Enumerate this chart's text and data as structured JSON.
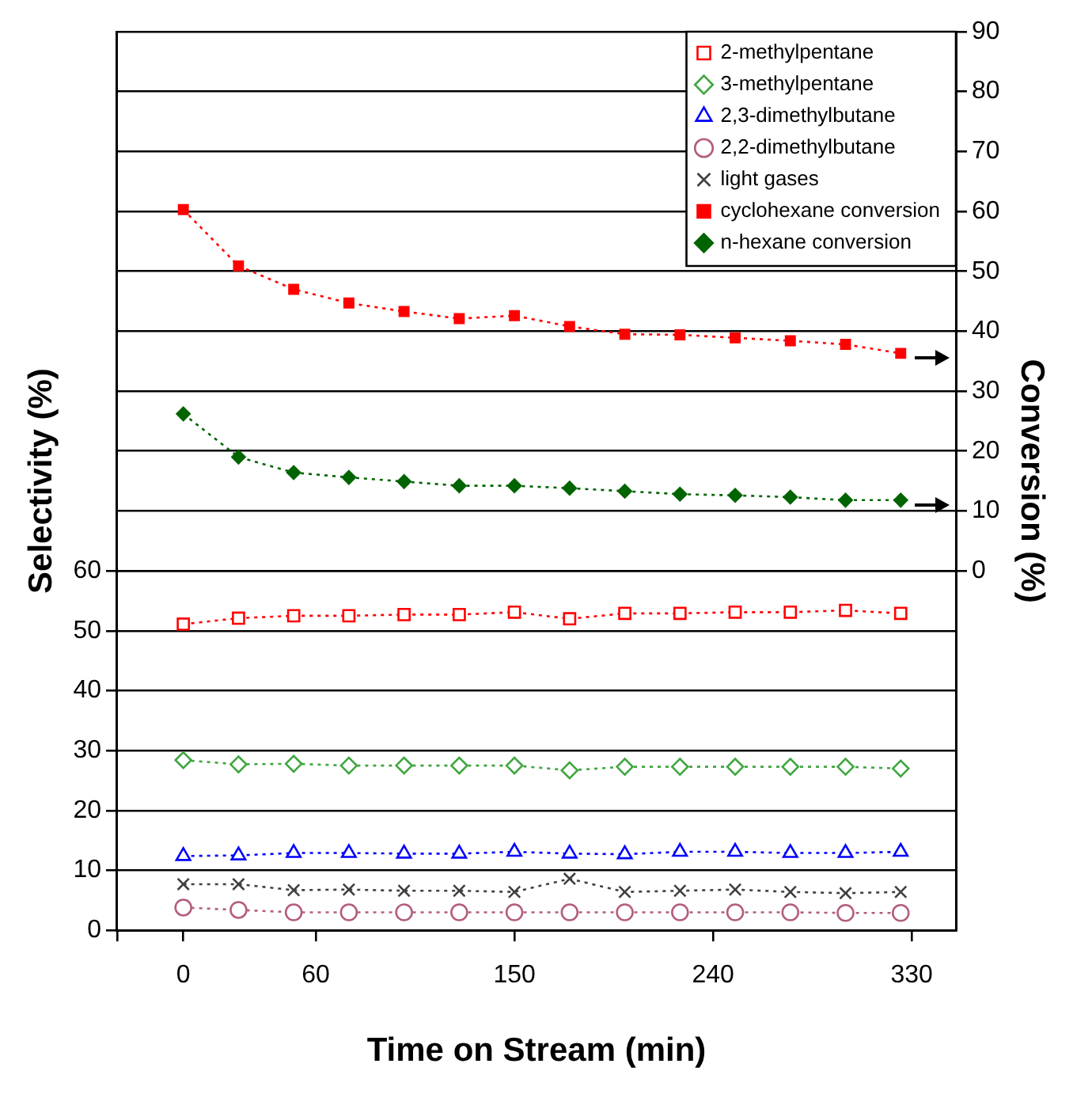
{
  "chart_data": {
    "type": "line",
    "xlabel": "Time on Stream (min)",
    "ylabel": "Selectivity (%)",
    "y2label": "Conversion (%)",
    "x": [
      0,
      25,
      50,
      75,
      100,
      125,
      150,
      175,
      200,
      225,
      250,
      275,
      300,
      325
    ],
    "xlim": [
      -30,
      350
    ],
    "xticks": [
      {
        "value": -30,
        "label": null
      },
      0,
      60,
      150,
      240,
      330
    ],
    "ylim": [
      0,
      150
    ],
    "yticks": [
      0,
      10,
      20,
      30,
      40,
      50,
      60
    ],
    "y2lim": [
      -60,
      90
    ],
    "y2ticks": [
      0,
      10,
      20,
      30,
      40,
      50,
      60,
      70,
      80,
      90
    ],
    "grid": "y",
    "legend": "top right",
    "line_style": "dotted",
    "series": [
      {
        "name": "2-methylpentane",
        "color": "#ff0000",
        "marker": "square",
        "values": [
          51.1,
          52.1,
          52.5,
          52.5,
          52.7,
          52.7,
          53.1,
          52.0,
          52.9,
          52.9,
          53.1,
          53.1,
          53.4,
          52.9
        ]
      },
      {
        "name": "3-methylpentane",
        "color": "#3fa63f",
        "marker": "diamond",
        "values": [
          28.4,
          27.7,
          27.8,
          27.5,
          27.5,
          27.5,
          27.5,
          26.7,
          27.3,
          27.3,
          27.3,
          27.3,
          27.3,
          27.0
        ]
      },
      {
        "name": "2,3-dimethylbutane",
        "color": "#0000ff",
        "marker": "triangle",
        "values": [
          12.4,
          12.5,
          12.9,
          12.9,
          12.8,
          12.8,
          13.1,
          12.8,
          12.7,
          13.1,
          13.1,
          12.9,
          12.9,
          13.1
        ]
      },
      {
        "name": "2,2-dimethylbutane",
        "color": "#b35d80",
        "marker": "circle",
        "values": [
          3.8,
          3.4,
          3.0,
          3.0,
          3.0,
          3.0,
          3.0,
          3.0,
          3.0,
          3.0,
          3.0,
          3.0,
          2.9,
          2.9
        ]
      },
      {
        "name": "light gases",
        "color": "#404040",
        "marker": "cross",
        "values": [
          7.7,
          7.7,
          6.7,
          6.8,
          6.6,
          6.6,
          6.4,
          8.6,
          6.4,
          6.6,
          6.8,
          6.4,
          6.2,
          6.4
        ]
      },
      {
        "name": "cyclohexane conversion",
        "color": "#ff0000",
        "marker": "square",
        "axis": "y2",
        "values": [
          60.3,
          50.9,
          47.0,
          44.7,
          43.3,
          42.1,
          42.6,
          40.8,
          39.5,
          39.4,
          38.9,
          38.4,
          37.8,
          36.3
        ]
      },
      {
        "name": "n-hexane conversion",
        "color": "#006400",
        "marker": "diamond",
        "axis": "y2",
        "values": [
          26.2,
          19.0,
          16.4,
          15.6,
          14.9,
          14.2,
          14.2,
          13.8,
          13.3,
          12.8,
          12.6,
          12.3,
          11.8,
          11.8
        ]
      }
    ]
  }
}
